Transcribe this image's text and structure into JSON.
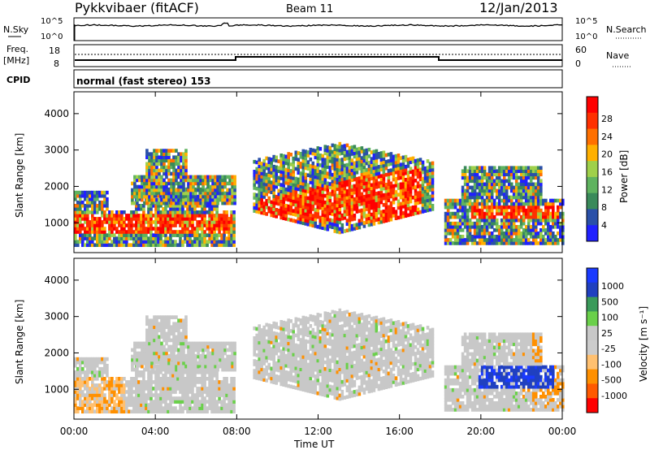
{
  "header": {
    "title": "Pykkvibaer (fitACF)",
    "beam": "Beam 11",
    "date": "12/Jan/2013"
  },
  "noise_panel": {
    "left_label": "N.Sky",
    "left_ticks": [
      "10^5",
      "10^0"
    ],
    "right_label": "N.Search",
    "right_ticks": [
      "10^5",
      "10^0"
    ]
  },
  "freq_panel": {
    "left_label_1": "Freq.",
    "left_label_2": "[MHz]",
    "left_ticks": [
      "18",
      "8"
    ],
    "right_label": "Nave",
    "right_ticks": [
      "60",
      "0"
    ]
  },
  "cpid": {
    "label": "CPID",
    "mode": "normal (fast stereo) 153"
  },
  "colors": {
    "power_scale": [
      "#2020ff",
      "#2a50a8",
      "#3a8a5a",
      "#5fb35f",
      "#9fd04a",
      "#ffb000",
      "#ff7000",
      "#ff3000",
      "#ff0000"
    ],
    "velocity_scale": [
      "#ff0000",
      "#ff5a00",
      "#ff9000",
      "#ffc070",
      "#cccccc",
      "#c8c8c8",
      "#6ad04a",
      "#3a9a5a",
      "#2040c0",
      "#1a3aff"
    ]
  },
  "chart_data": [
    {
      "type": "line",
      "title": "Pykkvibaer (fitACF)",
      "series": [
        {
          "name": "N.Sky",
          "x": [
            "00:00",
            "04:00",
            "08:00",
            "12:00",
            "16:00",
            "20:00",
            "00:00"
          ],
          "values": [
            1000,
            1100,
            1200,
            1400,
            1300,
            1250,
            1200
          ]
        },
        {
          "name": "Freq.",
          "x": [
            "00:00",
            "08:00",
            "08:00",
            "18:00",
            "18:00",
            "00:00"
          ],
          "values": [
            10,
            10,
            11,
            11,
            10,
            10
          ]
        }
      ]
    },
    {
      "type": "heatmap",
      "title": "Power",
      "ylabel": "Slant Range [km]",
      "xlabel": "Time UT",
      "xticks": [
        "00:00",
        "04:00",
        "08:00",
        "12:00",
        "16:00",
        "20:00",
        "00:00"
      ],
      "yticks": [
        "1000",
        "2000",
        "3000",
        "4000"
      ],
      "ylim": [
        180,
        4600
      ],
      "colorbar": {
        "label": "Power [dB]",
        "ticks": [
          "4",
          "8",
          "12",
          "16",
          "20",
          "24",
          "28"
        ],
        "range": [
          0,
          30
        ]
      }
    },
    {
      "type": "heatmap",
      "title": "Velocity",
      "ylabel": "Slant Range [km]",
      "xlabel": "Time UT",
      "xticks": [
        "00:00",
        "04:00",
        "08:00",
        "12:00",
        "16:00",
        "20:00",
        "00:00"
      ],
      "yticks": [
        "1000",
        "2000",
        "3000",
        "4000"
      ],
      "ylim": [
        180,
        4600
      ],
      "colorbar": {
        "label": "Velocity [m s⁻¹]",
        "ticks": [
          "1000",
          "500",
          "100",
          "25",
          "-25",
          "-100",
          "-500",
          "-1000"
        ]
      }
    }
  ],
  "axes": {
    "xlabel": "Time UT",
    "ylabel": "Slant Range [km]",
    "xticks": [
      "00:00",
      "04:00",
      "08:00",
      "12:00",
      "16:00",
      "20:00",
      "00:00"
    ],
    "yticks": [
      "1000",
      "2000",
      "3000",
      "4000"
    ],
    "power_cb_label": "Power [dB]",
    "power_cb_ticks": [
      "28",
      "24",
      "20",
      "16",
      "12",
      "8",
      "4"
    ],
    "vel_cb_label": "Velocity [m s⁻¹]",
    "vel_cb_ticks": [
      "1000",
      "500",
      "100",
      "25",
      "-25",
      "-100",
      "-500",
      "-1000"
    ]
  }
}
